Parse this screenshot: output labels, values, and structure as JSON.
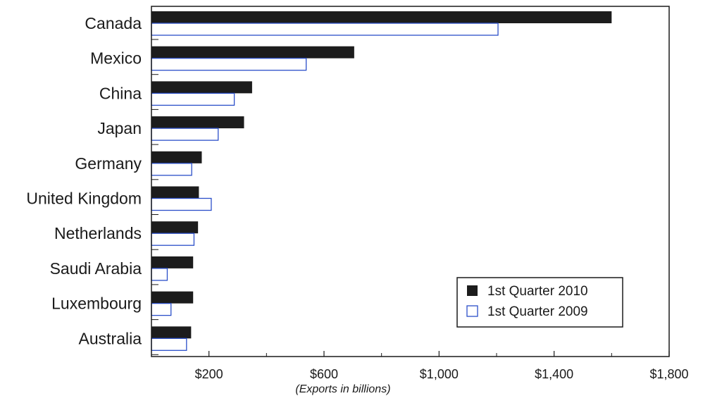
{
  "chart_data": {
    "type": "bar",
    "orientation": "horizontal",
    "title": "",
    "xlabel": "(Exports in billions)",
    "ylabel": "",
    "categories": [
      "Canada",
      "Mexico",
      "China",
      "Japan",
      "Germany",
      "United Kingdom",
      "Netherlands",
      "Saudi Arabia",
      "Luxembourg",
      "Australia"
    ],
    "series": [
      {
        "name": "1st Quarter 2010",
        "values": [
          1600,
          705,
          350,
          322,
          175,
          165,
          162,
          145,
          145,
          138
        ],
        "color": "#1c1c1c"
      },
      {
        "name": "1st Quarter 2009",
        "values": [
          1205,
          538,
          288,
          232,
          140,
          208,
          148,
          55,
          68,
          122
        ],
        "color": "#ffffff",
        "stroke": "#2b4fc9"
      }
    ],
    "xlim": [
      0,
      1800
    ],
    "xticks": [
      200,
      600,
      1000,
      1400,
      1800
    ],
    "xtick_labels": [
      "$200",
      "$600",
      "$1,000",
      "$1,400",
      "$1,800"
    ],
    "legend_position": "bottom-right",
    "grid": false
  }
}
